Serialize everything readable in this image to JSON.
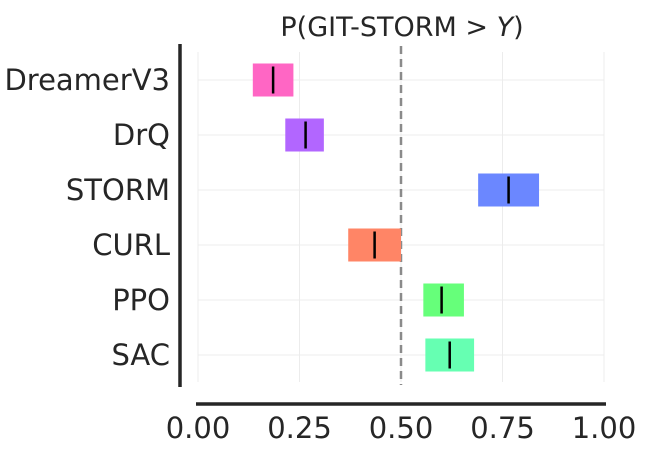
{
  "chart_data": {
    "type": "interval",
    "title_prefix": "P(GIT-STORM > ",
    "title_var": "Y",
    "title_suffix": ")",
    "categories": [
      "DreamerV3",
      "DrQ",
      "STORM",
      "CURL",
      "PPO",
      "SAC"
    ],
    "series": [
      {
        "name": "DreamerV3",
        "lower": 0.135,
        "upper": 0.235,
        "point": 0.185,
        "color": "#ff66c4"
      },
      {
        "name": "DrQ",
        "lower": 0.215,
        "upper": 0.31,
        "point": 0.265,
        "color": "#b266ff"
      },
      {
        "name": "STORM",
        "lower": 0.69,
        "upper": 0.84,
        "point": 0.765,
        "color": "#6b87ff"
      },
      {
        "name": "CURL",
        "lower": 0.37,
        "upper": 0.5,
        "point": 0.435,
        "color": "#ff8566"
      },
      {
        "name": "PPO",
        "lower": 0.555,
        "upper": 0.655,
        "point": 0.6,
        "color": "#66ff7a"
      },
      {
        "name": "SAC",
        "lower": 0.56,
        "upper": 0.68,
        "point": 0.62,
        "color": "#66ffb2"
      }
    ],
    "xticks": [
      "0.00",
      "0.25",
      "0.50",
      "0.75",
      "1.00"
    ],
    "xlim": [
      0,
      1
    ],
    "reference_line": 0.5,
    "grid": true
  }
}
